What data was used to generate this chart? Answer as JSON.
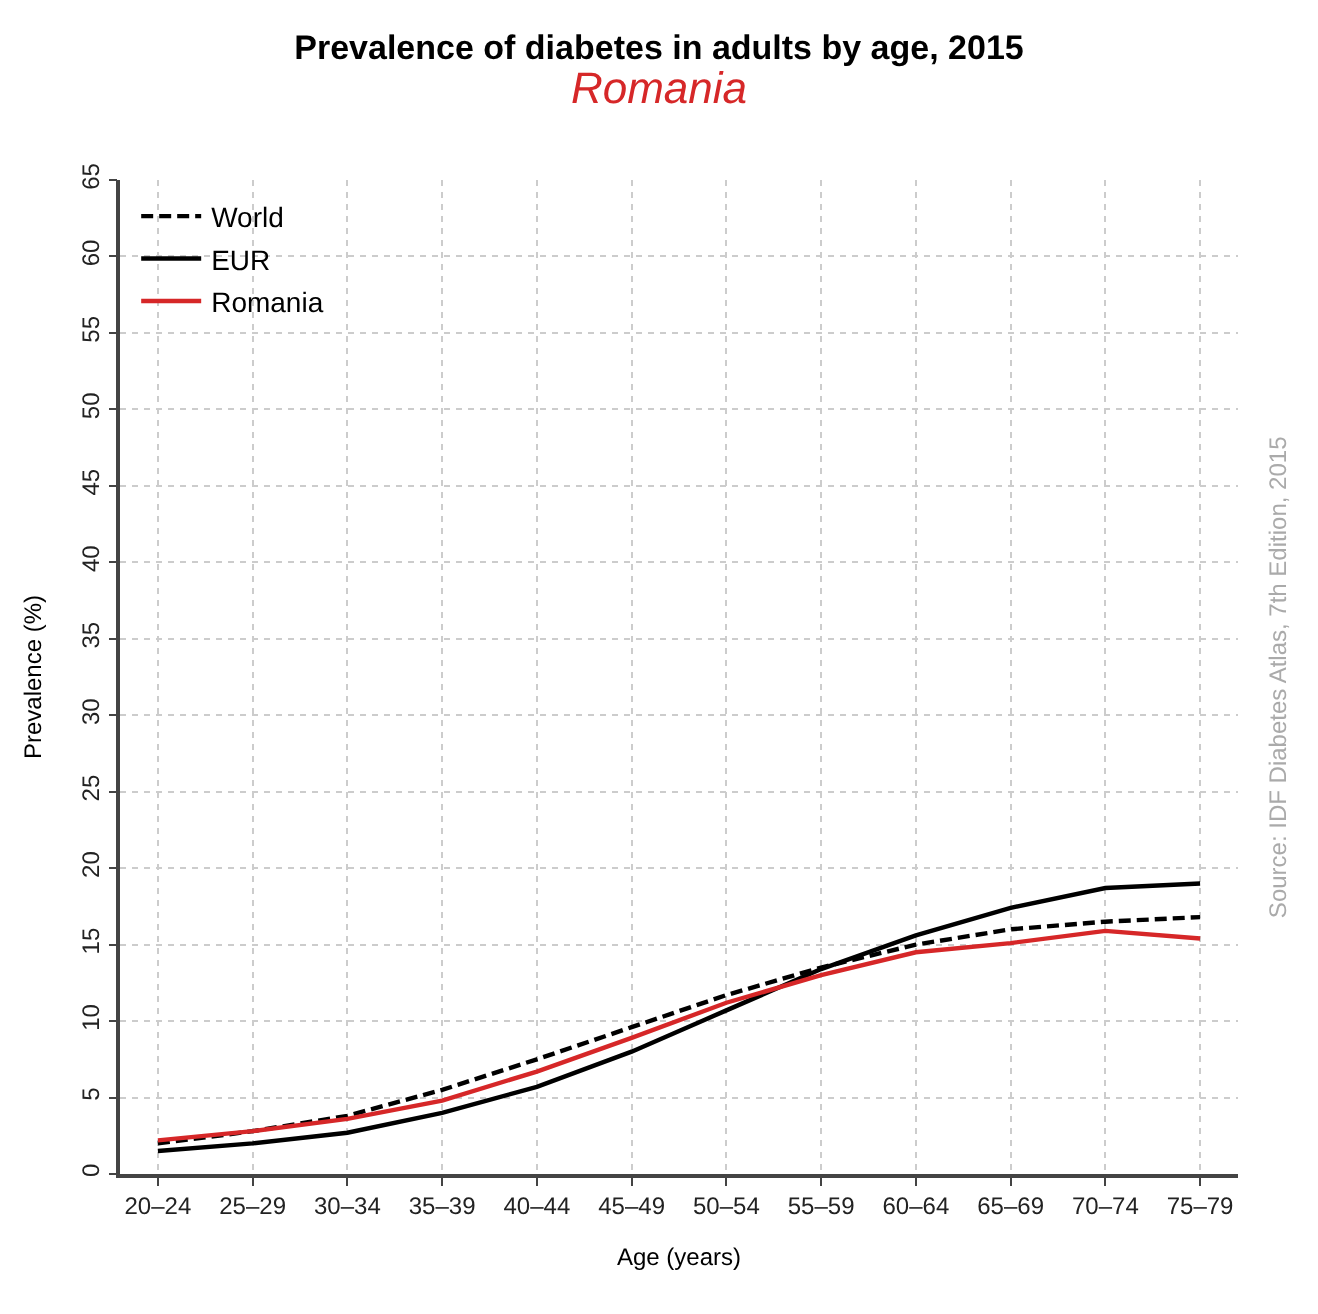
{
  "chart_data": {
    "type": "line",
    "title": "Prevalence of diabetes in adults by age, 2015",
    "subtitle": "Romania",
    "xlabel": "Age (years)",
    "ylabel": "Prevalence (%)",
    "categories": [
      "20–24",
      "25–29",
      "30–34",
      "35–39",
      "40–44",
      "45–49",
      "50–54",
      "55–59",
      "60–64",
      "65–69",
      "70–74",
      "75–79"
    ],
    "series": [
      {
        "name": "World",
        "color": "#000000",
        "line_style": "dashed",
        "values": [
          2.0,
          2.8,
          3.8,
          5.5,
          7.5,
          9.6,
          11.7,
          13.5,
          15.0,
          16.0,
          16.5,
          16.8
        ]
      },
      {
        "name": "EUR",
        "color": "#000000",
        "line_style": "solid",
        "values": [
          1.5,
          2.0,
          2.7,
          4.0,
          5.7,
          8.0,
          10.7,
          13.4,
          15.6,
          17.4,
          18.7,
          19.0
        ]
      },
      {
        "name": "Romania",
        "color": "#d62728",
        "line_style": "solid",
        "values": [
          2.2,
          2.8,
          3.6,
          4.8,
          6.7,
          8.9,
          11.2,
          13.0,
          14.5,
          15.1,
          15.9,
          15.4
        ]
      }
    ],
    "ylim": [
      0,
      65
    ],
    "yticks": [
      0,
      5,
      10,
      15,
      20,
      25,
      30,
      35,
      40,
      45,
      50,
      55,
      60,
      65
    ],
    "grid": true,
    "legend": "top left",
    "marker": "none",
    "annotations": [
      "Source: IDF Diabetes Atlas, 7th Edition, 2015"
    ]
  }
}
